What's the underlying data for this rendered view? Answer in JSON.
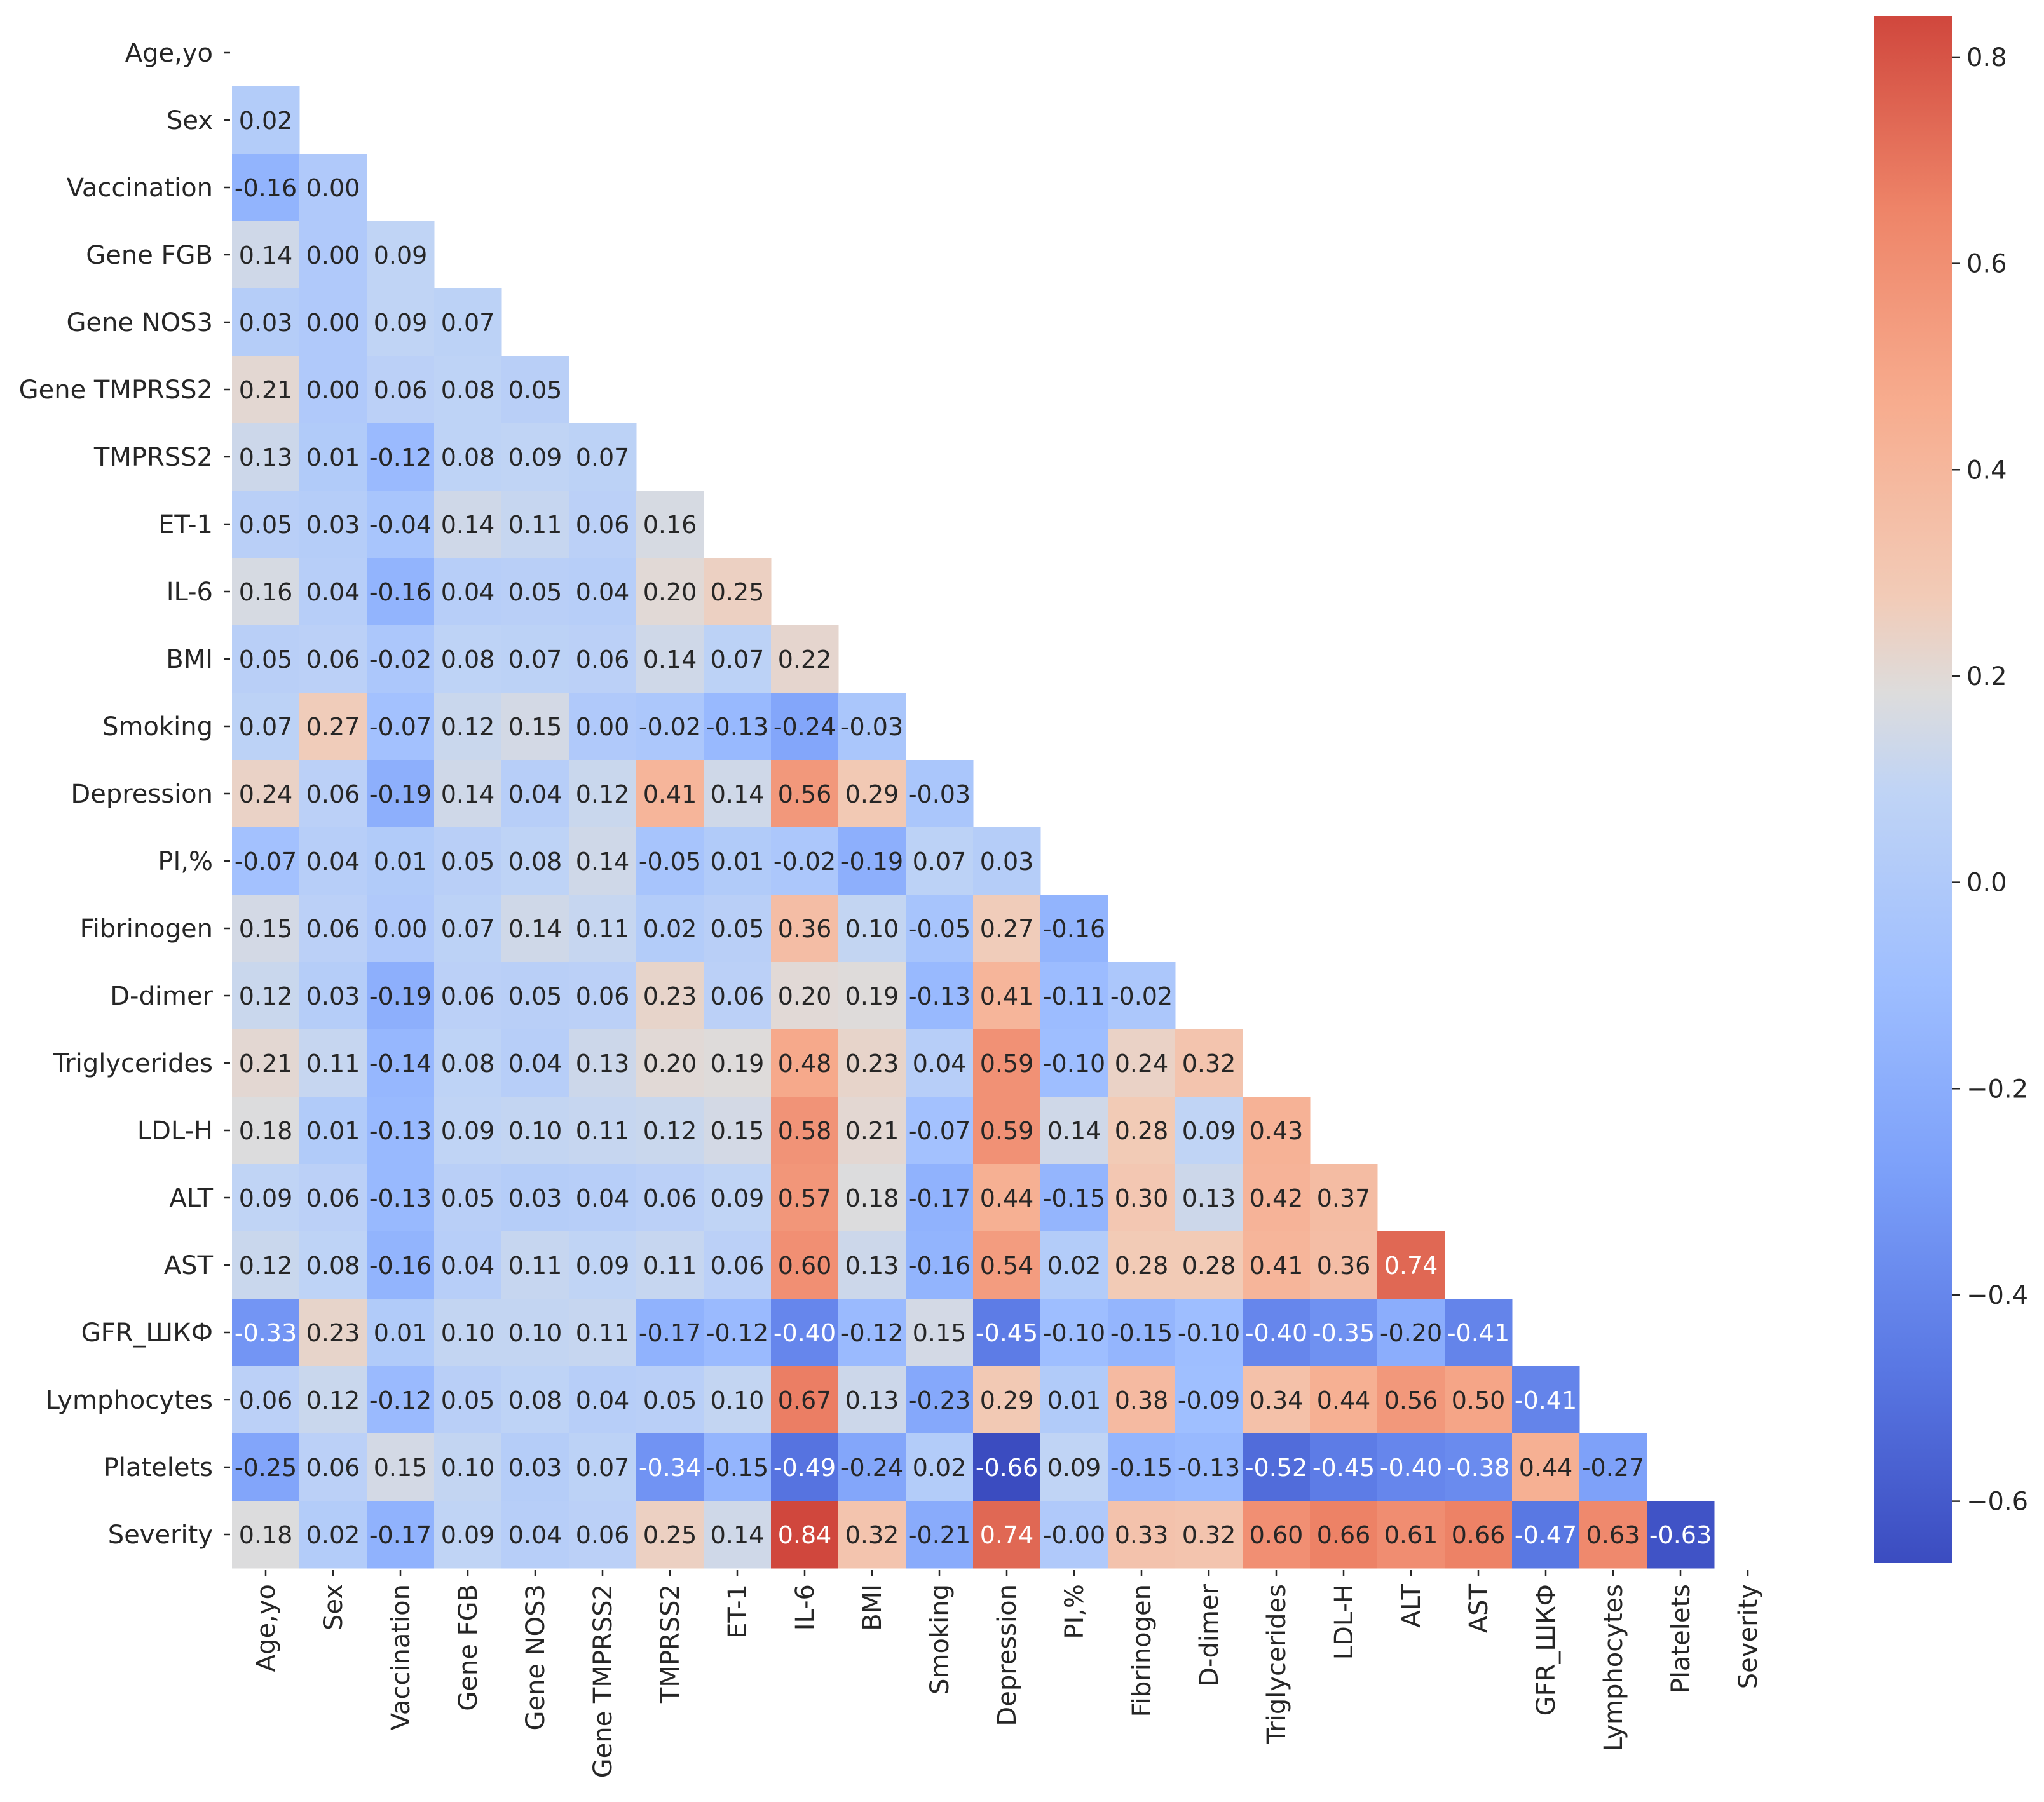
{
  "chart_data": {
    "type": "heatmap",
    "title": "",
    "xlabel": "",
    "ylabel": "",
    "labels": [
      "Age,yo",
      "Sex",
      "Vaccination",
      "Gene FGB",
      "Gene NOS3",
      "Gene TMPRSS2",
      "TMPRSS2",
      "ET-1",
      "IL-6",
      "BMI",
      "Smoking",
      "Depression",
      "PI,%",
      "Fibrinogen",
      "D-dimer",
      "Triglycerides",
      "LDL-H",
      "ALT",
      "AST",
      "GFR_ШКФ",
      "Lymphocytes",
      "Platelets",
      "Severity"
    ],
    "mask": "upper triangle including diagonal",
    "values": [
      [],
      [
        "0.02"
      ],
      [
        "-0.16",
        "0.00"
      ],
      [
        "0.14",
        "0.00",
        "0.09"
      ],
      [
        "0.03",
        "0.00",
        "0.09",
        "0.07"
      ],
      [
        "0.21",
        "0.00",
        "0.06",
        "0.08",
        "0.05"
      ],
      [
        "0.13",
        "0.01",
        "-0.12",
        "0.08",
        "0.09",
        "0.07"
      ],
      [
        "0.05",
        "0.03",
        "-0.04",
        "0.14",
        "0.11",
        "0.06",
        "0.16"
      ],
      [
        "0.16",
        "0.04",
        "-0.16",
        "0.04",
        "0.05",
        "0.04",
        "0.20",
        "0.25"
      ],
      [
        "0.05",
        "0.06",
        "-0.02",
        "0.08",
        "0.07",
        "0.06",
        "0.14",
        "0.07",
        "0.22"
      ],
      [
        "0.07",
        "0.27",
        "-0.07",
        "0.12",
        "0.15",
        "0.00",
        "-0.02",
        "-0.13",
        "-0.24",
        "-0.03"
      ],
      [
        "0.24",
        "0.06",
        "-0.19",
        "0.14",
        "0.04",
        "0.12",
        "0.41",
        "0.14",
        "0.56",
        "0.29",
        "-0.03"
      ],
      [
        "-0.07",
        "0.04",
        "0.01",
        "0.05",
        "0.08",
        "0.14",
        "-0.05",
        "0.01",
        "-0.02",
        "-0.19",
        "0.07",
        "0.03"
      ],
      [
        "0.15",
        "0.06",
        "0.00",
        "0.07",
        "0.14",
        "0.11",
        "0.02",
        "0.05",
        "0.36",
        "0.10",
        "-0.05",
        "0.27",
        "-0.16"
      ],
      [
        "0.12",
        "0.03",
        "-0.19",
        "0.06",
        "0.05",
        "0.06",
        "0.23",
        "0.06",
        "0.20",
        "0.19",
        "-0.13",
        "0.41",
        "-0.11",
        "-0.02"
      ],
      [
        "0.21",
        "0.11",
        "-0.14",
        "0.08",
        "0.04",
        "0.13",
        "0.20",
        "0.19",
        "0.48",
        "0.23",
        "0.04",
        "0.59",
        "-0.10",
        "0.24",
        "0.32"
      ],
      [
        "0.18",
        "0.01",
        "-0.13",
        "0.09",
        "0.10",
        "0.11",
        "0.12",
        "0.15",
        "0.58",
        "0.21",
        "-0.07",
        "0.59",
        "0.14",
        "0.28",
        "0.09",
        "0.43"
      ],
      [
        "0.09",
        "0.06",
        "-0.13",
        "0.05",
        "0.03",
        "0.04",
        "0.06",
        "0.09",
        "0.57",
        "0.18",
        "-0.17",
        "0.44",
        "-0.15",
        "0.30",
        "0.13",
        "0.42",
        "0.37"
      ],
      [
        "0.12",
        "0.08",
        "-0.16",
        "0.04",
        "0.11",
        "0.09",
        "0.11",
        "0.06",
        "0.60",
        "0.13",
        "-0.16",
        "0.54",
        "0.02",
        "0.28",
        "0.28",
        "0.41",
        "0.36",
        "0.74"
      ],
      [
        "-0.33",
        "0.23",
        "0.01",
        "0.10",
        "0.10",
        "0.11",
        "-0.17",
        "-0.12",
        "-0.40",
        "-0.12",
        "0.15",
        "-0.45",
        "-0.10",
        "-0.15",
        "-0.10",
        "-0.40",
        "-0.35",
        "-0.20",
        "-0.41"
      ],
      [
        "0.06",
        "0.12",
        "-0.12",
        "0.05",
        "0.08",
        "0.04",
        "0.05",
        "0.10",
        "0.67",
        "0.13",
        "-0.23",
        "0.29",
        "0.01",
        "0.38",
        "-0.09",
        "0.34",
        "0.44",
        "0.56",
        "0.50",
        "-0.41"
      ],
      [
        "-0.25",
        "0.06",
        "0.15",
        "0.10",
        "0.03",
        "0.07",
        "-0.34",
        "-0.15",
        "-0.49",
        "-0.24",
        "0.02",
        "-0.66",
        "0.09",
        "-0.15",
        "-0.13",
        "-0.52",
        "-0.45",
        "-0.40",
        "-0.38",
        "0.44",
        "-0.27"
      ],
      [
        "0.18",
        "0.02",
        "-0.17",
        "0.09",
        "0.04",
        "0.06",
        "0.25",
        "0.14",
        "0.84",
        "0.32",
        "-0.21",
        "0.74",
        "-0.00",
        "0.33",
        "0.32",
        "0.60",
        "0.66",
        "0.61",
        "0.66",
        "-0.47",
        "0.63",
        "-0.63"
      ]
    ],
    "colormap": "coolwarm",
    "vmin": -0.66,
    "vmax": 0.84,
    "colorbar": {
      "ticks": [
        "0.8",
        "0.6",
        "0.4",
        "0.2",
        "0.0",
        "−0.2",
        "−0.4",
        "−0.6"
      ],
      "placement": "right"
    }
  }
}
